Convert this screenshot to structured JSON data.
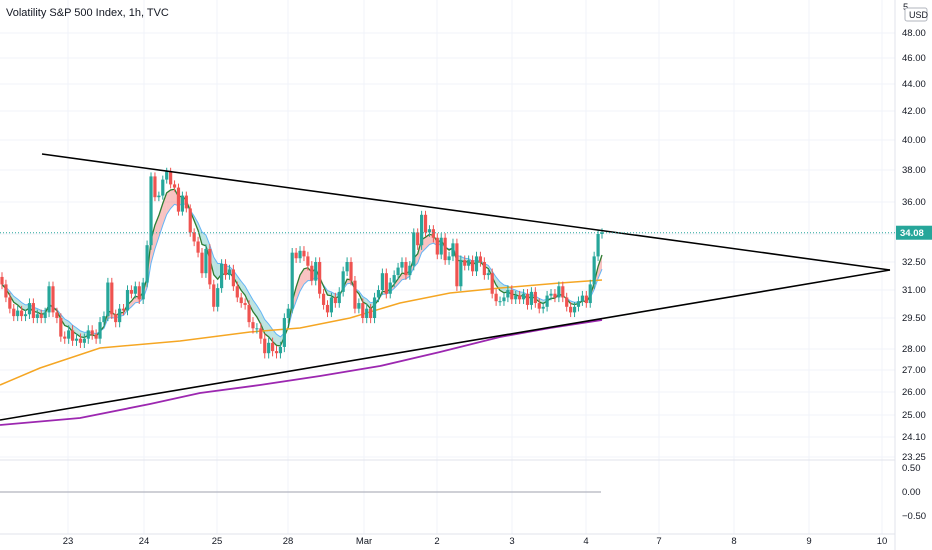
{
  "header": {
    "title": "Volatility S&P 500 Index, 1h, TVC",
    "currency": "USD",
    "top_tick_fragment": "5"
  },
  "colors": {
    "up": "#26a69a",
    "down": "#ef5350",
    "accent": "#2962ff",
    "ema_green": "#2e7d32",
    "ema_blue": "#64b5f6",
    "ma_orange": "#f5a623",
    "ma_purple": "#9c27b0",
    "trendline": "#000000"
  },
  "chart_data": {
    "type": "candlestick",
    "y_axis": {
      "ticks": [
        "48.00",
        "46.00",
        "44.00",
        "42.00",
        "40.00",
        "38.00",
        "36.00",
        "34.00",
        "32.50",
        "31.00",
        "29.50",
        "28.00",
        "27.00",
        "26.00",
        "25.00",
        "24.10",
        "23.25"
      ],
      "last_price": "34.08"
    },
    "x_axis": {
      "ticks": [
        "23",
        "24",
        "25",
        "28",
        "Mar",
        "2",
        "3",
        "4",
        "7",
        "8",
        "9",
        "10"
      ]
    },
    "oscillator": {
      "ticks": [
        "0.50",
        "0.00",
        "−0.50"
      ],
      "value": 0.0
    },
    "series": [
      {
        "close": [
          31.3,
          30.6,
          30.0,
          29.6,
          29.9,
          29.6,
          29.7,
          30.3,
          29.5,
          29.7,
          29.5,
          29.8,
          31.2,
          29.8,
          29.5,
          28.6,
          28.5,
          28.9,
          28.4,
          28.5,
          28.3,
          28.5,
          28.9,
          28.7,
          28.5,
          29.3,
          29.6,
          31.4,
          29.7,
          29.3,
          30.0,
          29.9,
          31.0,
          30.8,
          31.2,
          30.5,
          31.4,
          33.4,
          37.6,
          36.3,
          36.4,
          37.4,
          37.9,
          37.1,
          36.9,
          35.4,
          36.4,
          35.6,
          34.1,
          33.6,
          33.0,
          31.9,
          33.2,
          31.3,
          30.1,
          31.1,
          32.4,
          31.8,
          32.1,
          31.2,
          30.6,
          30.3,
          30.2,
          29.3,
          29.0,
          29.0,
          28.5,
          27.8,
          28.3,
          27.9,
          27.8,
          28.1,
          29.5,
          30.0,
          33.0,
          32.7,
          33.1,
          32.8,
          32.3,
          31.5,
          32.5,
          30.8,
          30.2,
          29.8,
          30.6,
          30.3,
          30.9,
          32.0,
          32.5,
          31.5,
          30.0,
          30.3,
          29.5,
          30.0,
          29.5,
          30.6,
          31.0,
          31.9,
          30.8,
          31.4,
          31.8,
          32.2,
          32.5,
          31.8,
          32.3,
          34.1,
          33.4,
          35.2,
          34.1,
          34.3,
          33.8,
          32.9,
          33.8,
          32.6,
          32.8,
          33.5,
          31.2,
          32.6,
          32.3,
          32.6,
          32.0,
          32.8,
          32.5,
          31.8,
          31.9,
          30.8,
          30.4,
          30.4,
          30.6,
          31.0,
          30.5,
          30.7,
          30.5,
          30.8,
          30.2,
          30.9,
          30.3,
          30.0,
          30.1,
          30.7,
          30.8,
          30.6,
          31.2,
          30.6,
          30.1,
          29.8,
          30.1,
          30.4,
          30.7,
          30.3,
          31.3,
          32.8,
          34.0,
          34.1
        ]
      },
      {
        "name": "",
        "values": []
      }
    ]
  }
}
